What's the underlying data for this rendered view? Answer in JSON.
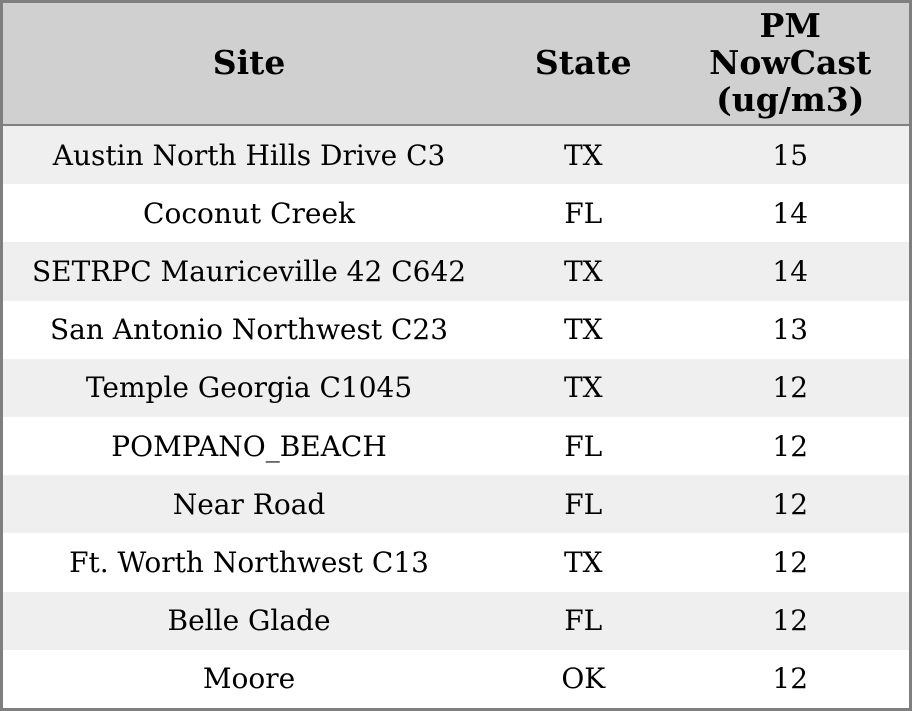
{
  "colors": {
    "border": "#7f7f7f",
    "header_bg": "#d0d0d0",
    "stripe": "#efefef",
    "row_bg": "#ffffff",
    "text": "#000000"
  },
  "table": {
    "columns": {
      "site": "Site",
      "state": "State",
      "pm": "PM\nNowCast\n(ug/m3)"
    },
    "rows": [
      {
        "site": "Austin North Hills Drive C3",
        "state": "TX",
        "pm": "15"
      },
      {
        "site": "Coconut Creek",
        "state": "FL",
        "pm": "14"
      },
      {
        "site": "SETRPC Mauriceville 42 C642",
        "state": "TX",
        "pm": "14"
      },
      {
        "site": "San Antonio Northwest C23",
        "state": "TX",
        "pm": "13"
      },
      {
        "site": "Temple Georgia C1045",
        "state": "TX",
        "pm": "12"
      },
      {
        "site": "POMPANO_BEACH",
        "state": "FL",
        "pm": "12"
      },
      {
        "site": "Near Road",
        "state": "FL",
        "pm": "12"
      },
      {
        "site": "Ft. Worth Northwest C13",
        "state": "TX",
        "pm": "12"
      },
      {
        "site": "Belle Glade",
        "state": "FL",
        "pm": "12"
      },
      {
        "site": "Moore",
        "state": "OK",
        "pm": "12"
      }
    ]
  }
}
